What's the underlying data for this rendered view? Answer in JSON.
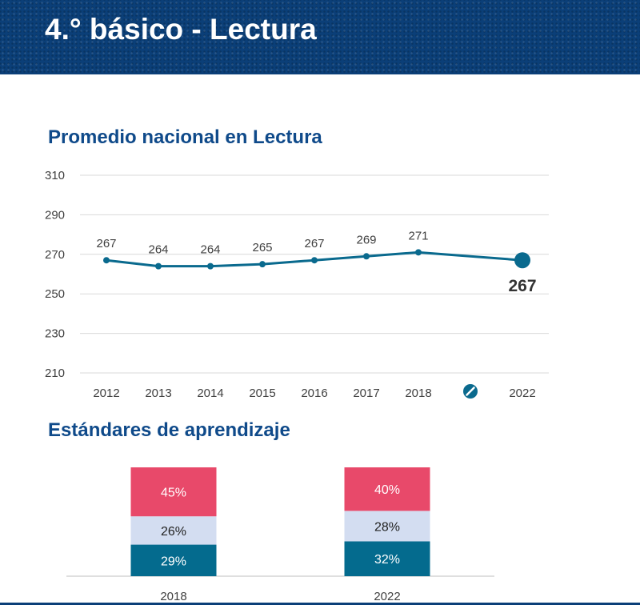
{
  "header": {
    "title": "4.° básico - Lectura"
  },
  "sections": {
    "line_title": "Promedio nacional en Lectura",
    "bar_title": "Estándares de aprendizaje"
  },
  "colors": {
    "header_bg": "#0b3f78",
    "title": "#0f4a8a",
    "line": "#0a6a8e",
    "bar_top": "#e8496a",
    "bar_mid": "#d3ddf1",
    "bar_bottom": "#046b8e"
  },
  "chart_data": [
    {
      "type": "line",
      "title": "Promedio nacional en Lectura",
      "x": [
        "2012",
        "2013",
        "2014",
        "2015",
        "2016",
        "2017",
        "2018",
        "",
        "2022"
      ],
      "series": [
        {
          "values": [
            267,
            264,
            264,
            265,
            267,
            269,
            271,
            null,
            267
          ]
        }
      ],
      "yticks": [
        "310",
        "290",
        "270",
        "250",
        "230",
        "210"
      ],
      "ylim": [
        210,
        310
      ],
      "grid": true,
      "gap_marker": "prohibited-icon",
      "highlight_label": "267"
    },
    {
      "type": "bar",
      "title": "Estándares de aprendizaje",
      "stacked": true,
      "categories": [
        "2018",
        "2022"
      ],
      "series": [
        {
          "values": [
            29,
            32
          ],
          "labels": [
            "29%",
            "32%"
          ]
        },
        {
          "values": [
            26,
            28
          ],
          "labels": [
            "26%",
            "28%"
          ]
        },
        {
          "values": [
            45,
            40
          ],
          "labels": [
            "45%",
            "40%"
          ]
        }
      ]
    }
  ]
}
